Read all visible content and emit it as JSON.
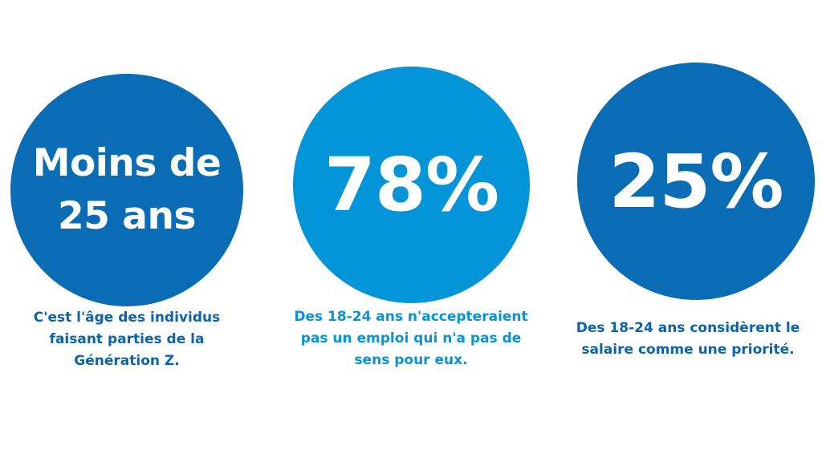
{
  "colors": {
    "dark_blue": "#0a6cb4",
    "light_blue": "#0494d8",
    "caption_dark": "#0a64ab",
    "caption_light": "#0494d8"
  },
  "stats": [
    {
      "headline_lines": [
        "Moins de",
        "25 ans"
      ],
      "caption_lines": [
        "C'est l'âge des individus",
        "faisant parties de la",
        "Génération Z."
      ],
      "circle_color": "#0a6cb4",
      "caption_color": "#0a64ab"
    },
    {
      "headline_lines": [
        "78%"
      ],
      "caption_lines": [
        "Des 18-24 ans n'accepteraient",
        "pas un emploi qui n'a pas de",
        "sens pour eux."
      ],
      "circle_color": "#0494d8",
      "caption_color": "#0494d8"
    },
    {
      "headline_lines": [
        "25%"
      ],
      "caption_lines": [
        "Des 18-24 ans considèrent le",
        "salaire comme une priorité."
      ],
      "circle_color": "#0a6cb4",
      "caption_color": "#0a64ab"
    }
  ]
}
